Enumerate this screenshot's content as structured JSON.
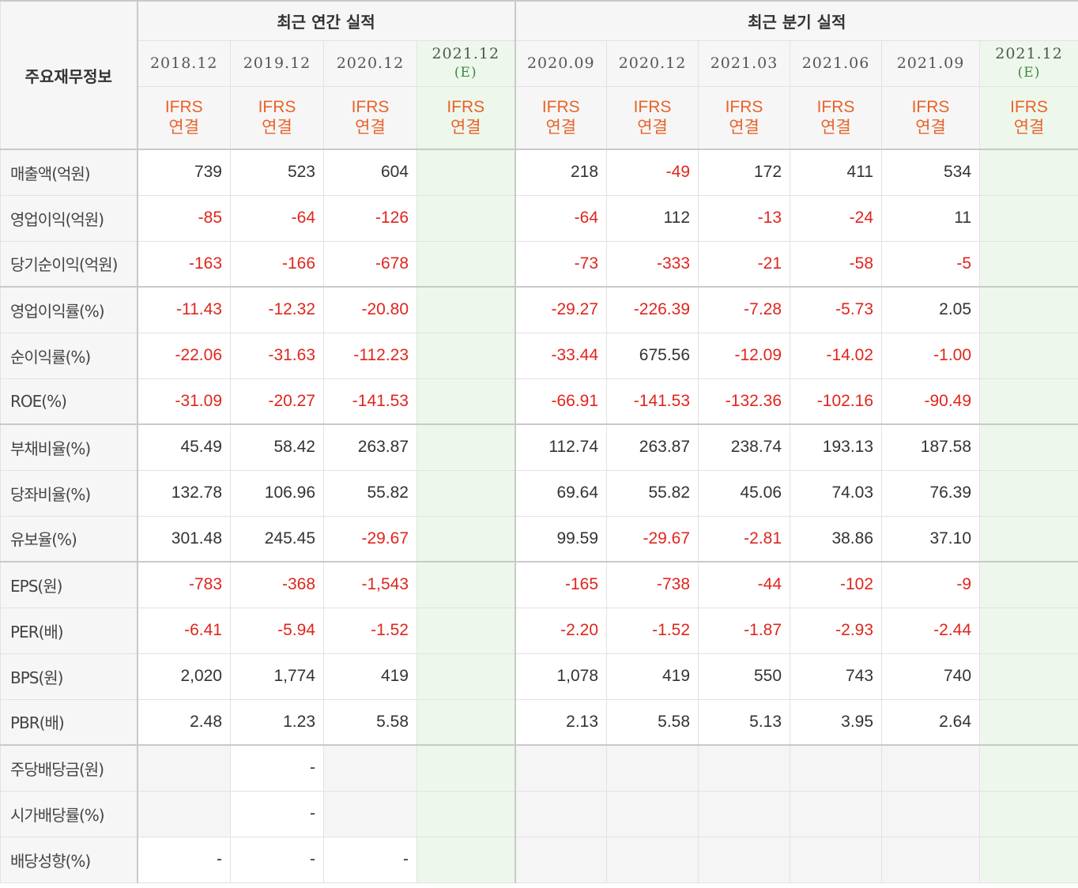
{
  "header": {
    "corner_label": "주요재무정보",
    "annual_group": "최근 연간 실적",
    "quarter_group": "최근 분기 실적",
    "estimate_mark": "(E)",
    "std_line1": "IFRS",
    "std_line2": "연결"
  },
  "columns": [
    {
      "period": "2018.12",
      "estimate": false
    },
    {
      "period": "2019.12",
      "estimate": false
    },
    {
      "period": "2020.12",
      "estimate": false
    },
    {
      "period": "2021.12",
      "estimate": true
    },
    {
      "period": "2020.09",
      "estimate": false
    },
    {
      "period": "2020.12",
      "estimate": false
    },
    {
      "period": "2021.03",
      "estimate": false
    },
    {
      "period": "2021.06",
      "estimate": false
    },
    {
      "period": "2021.09",
      "estimate": false
    },
    {
      "period": "2021.12",
      "estimate": true
    }
  ],
  "rows": [
    {
      "label": "매출액(억원)",
      "values": [
        "739",
        "523",
        "604",
        "",
        "218",
        "-49",
        "172",
        "411",
        "534",
        ""
      ]
    },
    {
      "label": "영업이익(억원)",
      "values": [
        "-85",
        "-64",
        "-126",
        "",
        "-64",
        "112",
        "-13",
        "-24",
        "11",
        ""
      ]
    },
    {
      "label": "당기순이익(억원)",
      "values": [
        "-163",
        "-166",
        "-678",
        "",
        "-73",
        "-333",
        "-21",
        "-58",
        "-5",
        ""
      ]
    },
    {
      "label": "영업이익률(%)",
      "values": [
        "-11.43",
        "-12.32",
        "-20.80",
        "",
        "-29.27",
        "-226.39",
        "-7.28",
        "-5.73",
        "2.05",
        ""
      ]
    },
    {
      "label": "순이익률(%)",
      "values": [
        "-22.06",
        "-31.63",
        "-112.23",
        "",
        "-33.44",
        "675.56",
        "-12.09",
        "-14.02",
        "-1.00",
        ""
      ]
    },
    {
      "label": "ROE(%)",
      "values": [
        "-31.09",
        "-20.27",
        "-141.53",
        "",
        "-66.91",
        "-141.53",
        "-132.36",
        "-102.16",
        "-90.49",
        ""
      ]
    },
    {
      "label": "부채비율(%)",
      "values": [
        "45.49",
        "58.42",
        "263.87",
        "",
        "112.74",
        "263.87",
        "238.74",
        "193.13",
        "187.58",
        ""
      ]
    },
    {
      "label": "당좌비율(%)",
      "values": [
        "132.78",
        "106.96",
        "55.82",
        "",
        "69.64",
        "55.82",
        "45.06",
        "74.03",
        "76.39",
        ""
      ]
    },
    {
      "label": "유보율(%)",
      "values": [
        "301.48",
        "245.45",
        "-29.67",
        "",
        "99.59",
        "-29.67",
        "-2.81",
        "38.86",
        "37.10",
        ""
      ]
    },
    {
      "label": "EPS(원)",
      "values": [
        "-783",
        "-368",
        "-1,543",
        "",
        "-165",
        "-738",
        "-44",
        "-102",
        "-9",
        ""
      ]
    },
    {
      "label": "PER(배)",
      "values": [
        "-6.41",
        "-5.94",
        "-1.52",
        "",
        "-2.20",
        "-1.52",
        "-1.87",
        "-2.93",
        "-2.44",
        ""
      ]
    },
    {
      "label": "BPS(원)",
      "values": [
        "2,020",
        "1,774",
        "419",
        "",
        "1,078",
        "419",
        "550",
        "743",
        "740",
        ""
      ]
    },
    {
      "label": "PBR(배)",
      "values": [
        "2.48",
        "1.23",
        "5.58",
        "",
        "2.13",
        "5.58",
        "5.13",
        "3.95",
        "2.64",
        ""
      ]
    },
    {
      "label": "주당배당금(원)",
      "values": [
        "",
        "-",
        "",
        "",
        "",
        "",
        "",
        "",
        "",
        ""
      ]
    },
    {
      "label": "시가배당률(%)",
      "values": [
        "",
        "-",
        "",
        "",
        "",
        "",
        "",
        "",
        "",
        ""
      ]
    },
    {
      "label": "배당성향(%)",
      "values": [
        "-",
        "-",
        "-",
        "",
        "",
        "",
        "",
        "",
        "",
        ""
      ]
    }
  ],
  "row_group_starts": [
    3,
    6,
    9,
    13
  ],
  "grey_cells": [
    [
      13,
      0
    ],
    [
      13,
      2
    ],
    [
      13,
      4
    ],
    [
      13,
      5
    ],
    [
      13,
      6
    ],
    [
      13,
      7
    ],
    [
      13,
      8
    ],
    [
      14,
      0
    ],
    [
      14,
      2
    ],
    [
      14,
      4
    ],
    [
      14,
      5
    ],
    [
      14,
      6
    ],
    [
      14,
      7
    ],
    [
      14,
      8
    ],
    [
      15,
      4
    ],
    [
      15,
      5
    ],
    [
      15,
      6
    ],
    [
      15,
      7
    ],
    [
      15,
      8
    ]
  ],
  "colors": {
    "negative": "#e0251d",
    "standard": "#e8632a",
    "estimate_text": "#3b8a45",
    "estimate_bg": "#eef7ec",
    "header_bg": "#f6f6f6"
  }
}
